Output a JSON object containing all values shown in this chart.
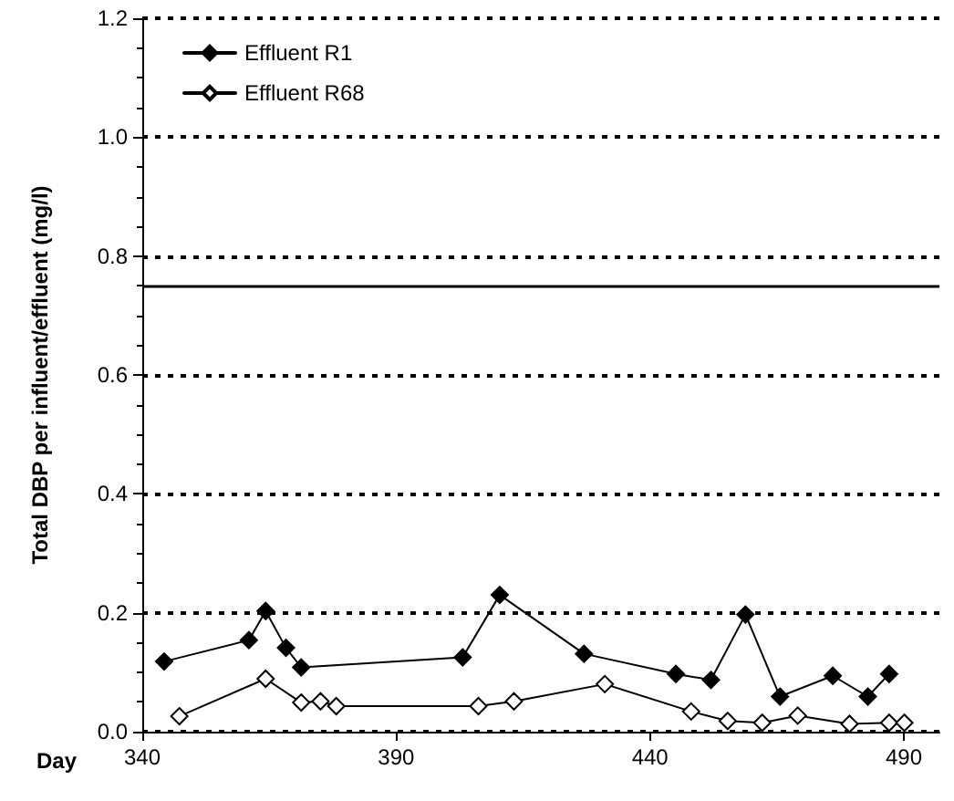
{
  "chart_data": {
    "type": "line",
    "xlabel": "Day",
    "ylabel": "Total DBP per influent/effluent (mg/l)",
    "xlim": [
      340,
      497
    ],
    "xticks": [
      340,
      390,
      440,
      490
    ],
    "ylim": [
      0,
      1.2
    ],
    "yticks": [
      {
        "value": 0,
        "label": "0.0"
      },
      {
        "value": 0.2,
        "label": "0.2"
      },
      {
        "value": 0.4,
        "label": "0.4"
      },
      {
        "value": 0.6,
        "label": "0.6"
      },
      {
        "value": 0.8,
        "label": "0.8"
      },
      {
        "value": 1.0,
        "label": "1.0"
      },
      {
        "value": 1.2,
        "label": "1.2"
      }
    ],
    "grid": "y",
    "legend": "top left",
    "marker": "diamond",
    "line_style": "solid",
    "ref_lines": [
      {
        "axis": "y",
        "value": 0.75,
        "label": null,
        "color": "#000000",
        "line_style": "solid"
      }
    ],
    "series": [
      {
        "name": "Effluent R1",
        "color": "#000000",
        "x": [
          344.3,
          361,
          364.3,
          368.3,
          371.3,
          403.1,
          410.4,
          427,
          445.1,
          452,
          458.8,
          465.6,
          476,
          482.9,
          487.1
        ],
        "values": [
          0.118,
          0.154,
          0.203,
          0.141,
          0.108,
          0.125,
          0.23,
          0.131,
          0.097,
          0.087,
          0.197,
          0.059,
          0.094,
          0.059,
          0.097
        ]
      },
      {
        "name": "Effluent R68",
        "color": "#000000",
        "x": [
          347.3,
          364.3,
          371.3,
          375.1,
          378.2,
          406.2,
          413.2,
          431.1,
          448.1,
          455.3,
          462.1,
          469.1,
          479.3,
          487.1,
          490.1
        ],
        "values": [
          0.026,
          0.089,
          0.049,
          0.051,
          0.043,
          0.043,
          0.051,
          0.08,
          0.034,
          0.018,
          0.015,
          0.027,
          0.013,
          0.015,
          0.015
        ]
      }
    ]
  }
}
